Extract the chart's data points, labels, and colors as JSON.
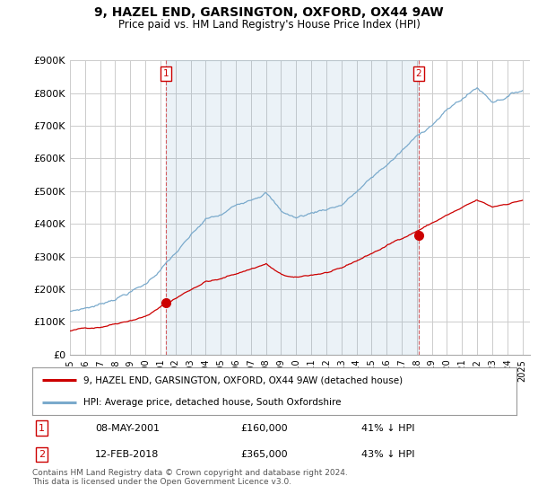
{
  "title_line1": "9, HAZEL END, GARSINGTON, OXFORD, OX44 9AW",
  "title_line2": "Price paid vs. HM Land Registry's House Price Index (HPI)",
  "ylabel_ticks": [
    "£0",
    "£100K",
    "£200K",
    "£300K",
    "£400K",
    "£500K",
    "£600K",
    "£700K",
    "£800K",
    "£900K"
  ],
  "ylabel_values": [
    0,
    100000,
    200000,
    300000,
    400000,
    500000,
    600000,
    700000,
    800000,
    900000
  ],
  "ylim": [
    0,
    900000
  ],
  "xlim_start": 1995.0,
  "xlim_end": 2025.5,
  "purchase1_date": "08-MAY-2001",
  "purchase1_price": 160000,
  "purchase1_pct": "41% ↓ HPI",
  "purchase1_x": 2001.35,
  "purchase2_date": "12-FEB-2018",
  "purchase2_price": 365000,
  "purchase2_pct": "43% ↓ HPI",
  "purchase2_x": 2018.12,
  "legend_line1": "9, HAZEL END, GARSINGTON, OXFORD, OX44 9AW (detached house)",
  "legend_line2": "HPI: Average price, detached house, South Oxfordshire",
  "footnote": "Contains HM Land Registry data © Crown copyright and database right 2024.\nThis data is licensed under the Open Government Licence v3.0.",
  "red_color": "#cc0000",
  "blue_color": "#7aaacc",
  "blue_fill": "#ddeeff",
  "background_color": "#ffffff",
  "grid_color": "#cccccc"
}
